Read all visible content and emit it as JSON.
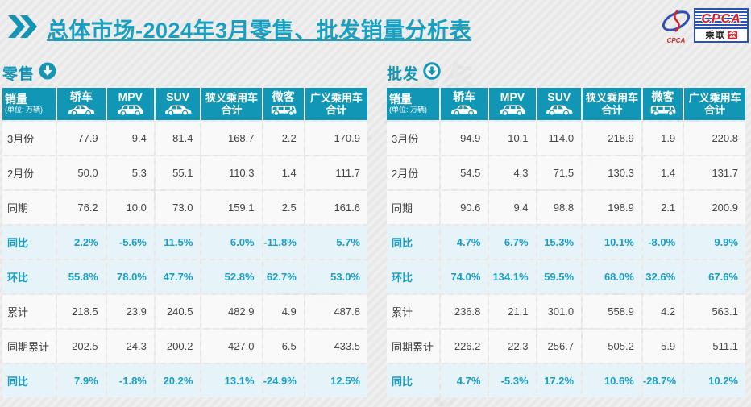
{
  "page": {
    "title_part1": "总体市场",
    "title_part2": "-2024年3月零售、批发销量分析表",
    "logo": {
      "acronym": "CPCA",
      "cn_left": "乘联",
      "cn_seal": "会",
      "mark_text": "CPCA"
    },
    "accent_color": "#1196b6",
    "highlight_text_color": "#189fc6",
    "highlight_row_bg": "#e5f3fa"
  },
  "columns": [
    {
      "label": "销量",
      "sub": "(单位: 万辆)",
      "icon": null
    },
    {
      "label": "轿车",
      "icon": "sedan-icon"
    },
    {
      "label": "MPV",
      "icon": "mpv-icon"
    },
    {
      "label": "SUV",
      "icon": "suv-icon"
    },
    {
      "label": "狭义乘用车",
      "label2": "合计",
      "icon": null
    },
    {
      "label": "微客",
      "icon": "microvan-icon"
    },
    {
      "label": "广义乘用车",
      "label2": "合计",
      "icon": null
    }
  ],
  "chart_data": [
    {
      "type": "table",
      "title": "零售",
      "arrow_style": "filled",
      "unit": "万辆",
      "columns": [
        "轿车",
        "MPV",
        "SUV",
        "狭义乘用车合计",
        "微客",
        "广义乘用车合计"
      ],
      "rows": [
        {
          "label": "3月份",
          "highlight": false,
          "values": [
            "77.9",
            "9.4",
            "81.4",
            "168.7",
            "2.2",
            "170.9"
          ]
        },
        {
          "label": "2月份",
          "highlight": false,
          "values": [
            "50.0",
            "5.3",
            "55.1",
            "110.3",
            "1.4",
            "111.7"
          ]
        },
        {
          "label": "同期",
          "highlight": false,
          "values": [
            "76.2",
            "10.0",
            "73.0",
            "159.1",
            "2.5",
            "161.6"
          ]
        },
        {
          "label": "同比",
          "highlight": true,
          "values": [
            "2.2%",
            "-5.6%",
            "11.5%",
            "6.0%",
            "-11.8%",
            "5.7%"
          ]
        },
        {
          "label": "环比",
          "highlight": true,
          "values": [
            "55.8%",
            "78.0%",
            "47.7%",
            "52.8%",
            "62.7%",
            "53.0%"
          ]
        },
        {
          "label": "累计",
          "highlight": false,
          "values": [
            "218.5",
            "23.9",
            "240.5",
            "482.9",
            "4.9",
            "487.8"
          ]
        },
        {
          "label": "同期累计",
          "highlight": false,
          "values": [
            "202.5",
            "24.3",
            "200.2",
            "427.0",
            "6.5",
            "433.5"
          ]
        },
        {
          "label": "同比",
          "highlight": true,
          "values": [
            "7.9%",
            "-1.8%",
            "20.2%",
            "13.1%",
            "-24.9%",
            "12.5%"
          ]
        }
      ]
    },
    {
      "type": "table",
      "title": "批发",
      "arrow_style": "outline",
      "unit": "万辆",
      "columns": [
        "轿车",
        "MPV",
        "SUV",
        "狭义乘用车合计",
        "微客",
        "广义乘用车合计"
      ],
      "rows": [
        {
          "label": "3月份",
          "highlight": false,
          "values": [
            "94.9",
            "10.1",
            "114.0",
            "218.9",
            "1.9",
            "220.8"
          ]
        },
        {
          "label": "2月份",
          "highlight": false,
          "values": [
            "54.5",
            "4.3",
            "71.5",
            "130.3",
            "1.4",
            "131.7"
          ]
        },
        {
          "label": "同期",
          "highlight": false,
          "values": [
            "90.6",
            "9.4",
            "98.8",
            "198.9",
            "2.1",
            "200.9"
          ]
        },
        {
          "label": "同比",
          "highlight": true,
          "values": [
            "4.7%",
            "6.7%",
            "15.3%",
            "10.1%",
            "-8.0%",
            "9.9%"
          ]
        },
        {
          "label": "环比",
          "highlight": true,
          "values": [
            "74.0%",
            "134.1%",
            "59.5%",
            "68.0%",
            "32.6%",
            "67.6%"
          ]
        },
        {
          "label": "累计",
          "highlight": false,
          "values": [
            "236.8",
            "21.1",
            "301.0",
            "558.9",
            "4.2",
            "563.1"
          ]
        },
        {
          "label": "同期累计",
          "highlight": false,
          "values": [
            "226.2",
            "22.3",
            "256.7",
            "505.2",
            "5.9",
            "511.1"
          ]
        },
        {
          "label": "同比",
          "highlight": true,
          "values": [
            "4.7%",
            "-5.3%",
            "17.2%",
            "10.6%",
            "-28.7%",
            "10.2%"
          ]
        }
      ]
    }
  ]
}
